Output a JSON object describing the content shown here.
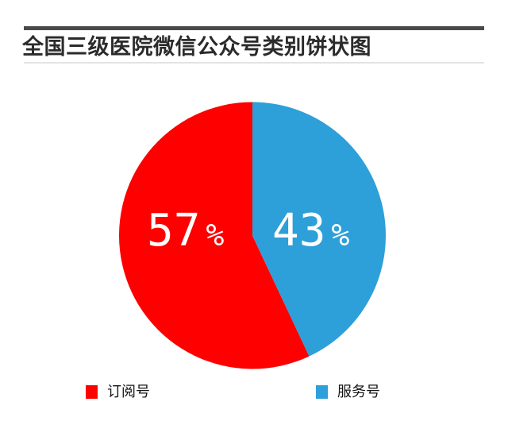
{
  "header": {
    "title": "全国三级医院微信公众号类别饼状图",
    "title_color": "#2b2b2b",
    "top_rule_color": "#4a4a4a",
    "bottom_rule_color": "#e3e3e3"
  },
  "chart_data": {
    "type": "pie",
    "title": "全国三级医院微信公众号类别饼状图",
    "start_angle": "12-o'clock",
    "direction_of_first_slice": "counter-clockwise",
    "label_color": "#ffffff",
    "legend_position": "bottom",
    "slices": [
      {
        "name": "订阅号",
        "value": 57,
        "percent_number": "57",
        "percent_symbol": "%",
        "color": "#fe0000"
      },
      {
        "name": "服务号",
        "value": 43,
        "percent_number": "43",
        "percent_symbol": "%",
        "color": "#2d9fd9"
      }
    ]
  }
}
